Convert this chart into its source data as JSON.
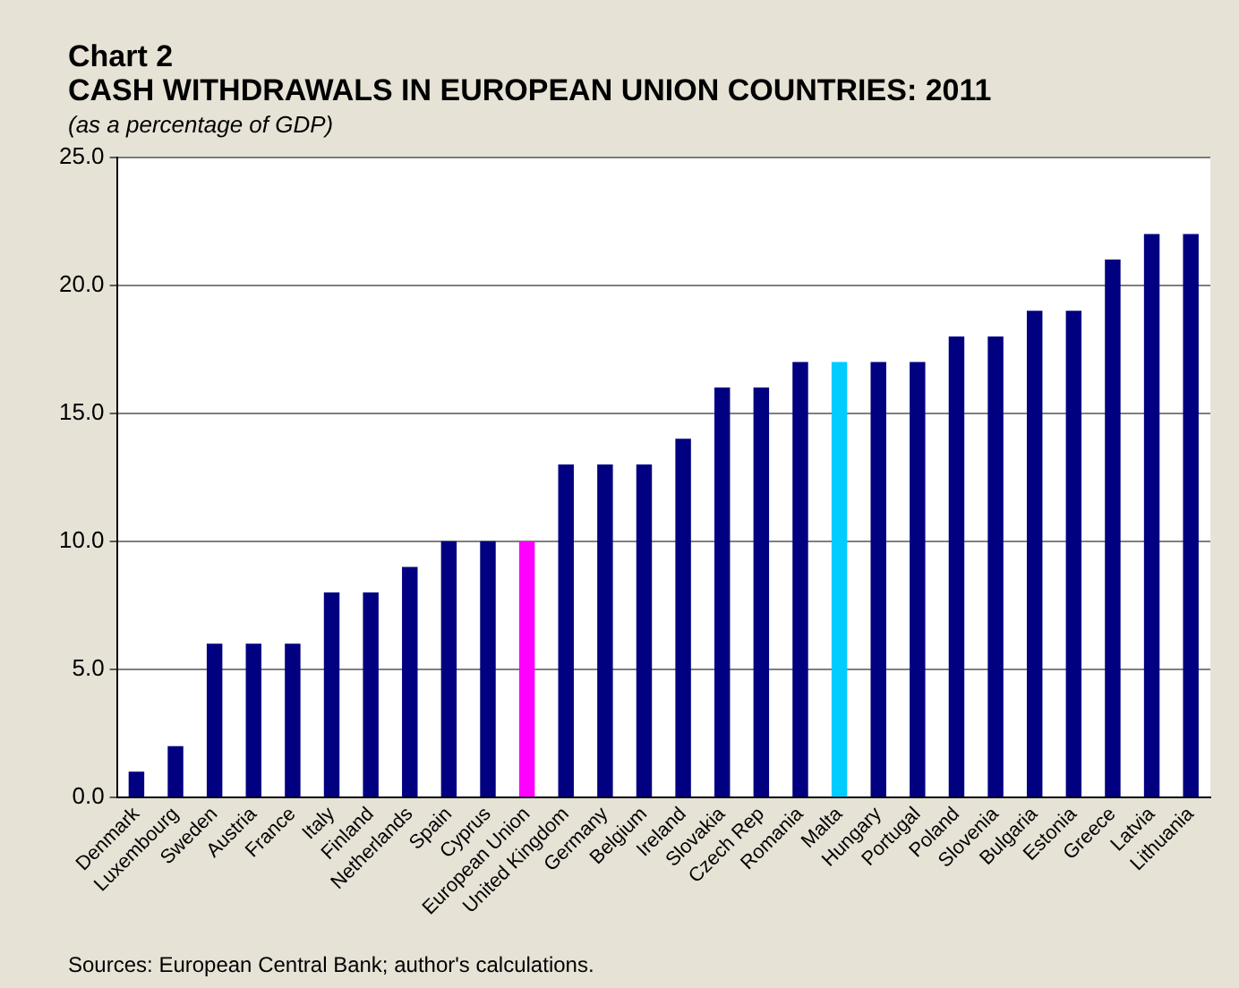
{
  "chart_data": {
    "type": "bar",
    "title": "CASH WITHDRAWALS IN EUROPEAN UNION COUNTRIES: 2011",
    "subtitle": "(as a percentage of GDP)",
    "annotations": [
      "Chart 2",
      "Sources: European Central Bank; author's calculations."
    ],
    "categories": [
      "Denmark",
      "Luxembourg",
      "Sweden",
      "Austria",
      "France",
      "Italy",
      "Finland",
      "Netherlands",
      "Spain",
      "Cyprus",
      "European Union",
      "United Kingdom",
      "Germany",
      "Belgium",
      "Ireland",
      "Slovakia",
      "Czech Rep",
      "Romania",
      "Malta",
      "Hungary",
      "Portugal",
      "Poland",
      "Slovenia",
      "Bulgaria",
      "Estonia",
      "Greece",
      "Latvia",
      "Lithuania"
    ],
    "values": [
      1,
      2,
      6,
      6,
      6,
      8,
      8,
      9,
      10,
      10,
      10,
      13,
      13,
      13,
      14,
      16,
      16,
      17,
      17,
      17,
      17,
      18,
      18,
      19,
      19,
      21,
      22,
      22
    ],
    "colors": [
      "#000080",
      "#000080",
      "#000080",
      "#000080",
      "#000080",
      "#000080",
      "#000080",
      "#000080",
      "#000080",
      "#000080",
      "#ff00ff",
      "#000080",
      "#000080",
      "#000080",
      "#000080",
      "#000080",
      "#000080",
      "#000080",
      "#00ccff",
      "#000080",
      "#000080",
      "#000080",
      "#000080",
      "#000080",
      "#000080",
      "#000080",
      "#000080",
      "#000080"
    ],
    "ylim": [
      0,
      25
    ],
    "yticks": [
      {
        "value": 0,
        "label": "0.0"
      },
      {
        "value": 5,
        "label": "5.0"
      },
      {
        "value": 10,
        "label": "10.0"
      },
      {
        "value": 15,
        "label": "15.0"
      },
      {
        "value": 20,
        "label": "20.0"
      },
      {
        "value": 25,
        "label": "25.0"
      }
    ],
    "grid": "y",
    "legend": false
  }
}
